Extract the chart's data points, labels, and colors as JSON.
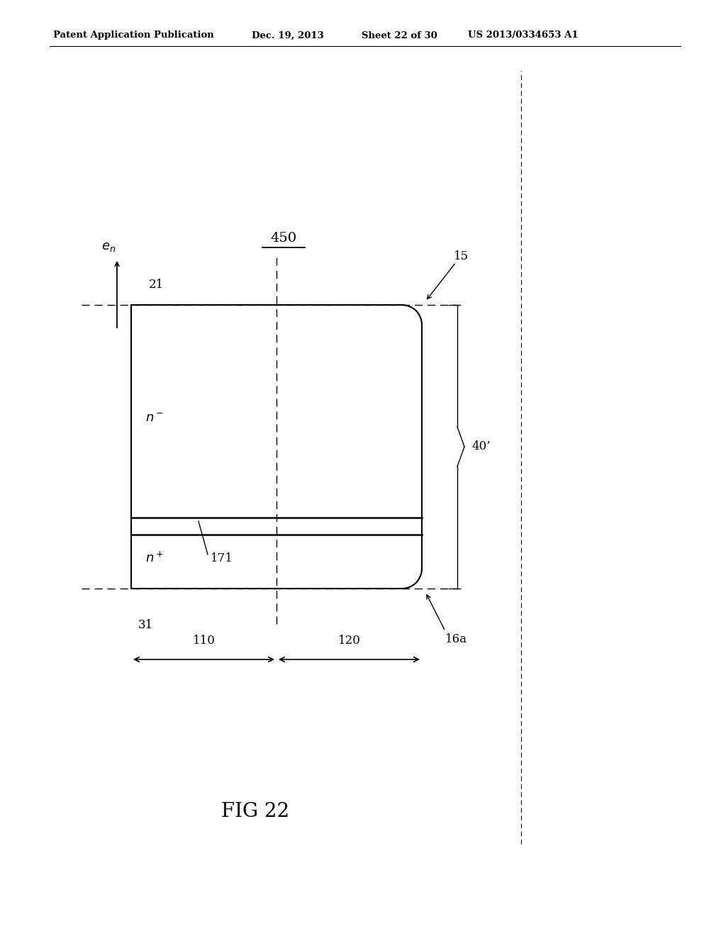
{
  "bg_color": "#ffffff",
  "header_text": "Patent Application Publication",
  "header_date": "Dec. 19, 2013",
  "header_sheet": "Sheet 22 of 30",
  "header_patent": "US 2013/0334653 A1",
  "fig_label": "FIG 22",
  "diagram_label": "450"
}
